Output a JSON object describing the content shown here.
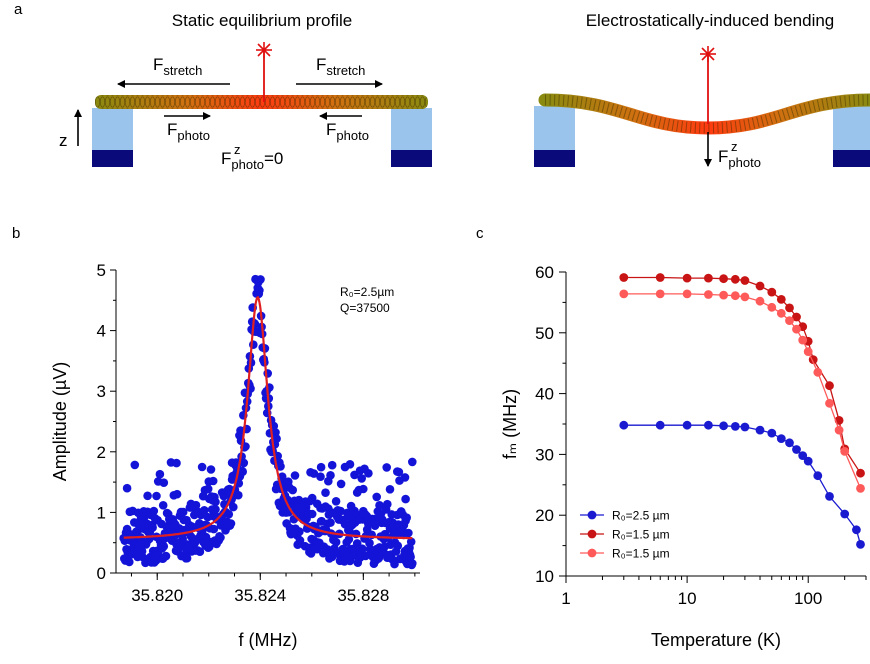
{
  "panels": {
    "a": {
      "letter": "a",
      "left_title": "Static equilibrium profile",
      "right_title": "Electrostatically-induced bending",
      "f_stretch_main": "F",
      "f_stretch_sub": "stretch",
      "f_photo_main": "F",
      "f_photo_sub": "photo",
      "z_label": "z",
      "fz_sup": "z",
      "fz_eq": "=0"
    },
    "b": {
      "letter": "b"
    },
    "c": {
      "letter": "c"
    }
  },
  "chart_data": [
    {
      "type": "scatter",
      "panel": "b",
      "xlabel": "f (MHz)",
      "ylabel": "Amplitude (µV)",
      "xlim": [
        35.8184,
        35.8302
      ],
      "ylim": [
        0,
        5
      ],
      "xticks": [
        35.82,
        35.824,
        35.828
      ],
      "xtick_labels": [
        "35.820",
        "35.824",
        "35.828"
      ],
      "yticks": [
        0,
        1,
        2,
        3,
        4,
        5
      ],
      "ytick_labels": [
        "0",
        "1",
        "2",
        "3",
        "4",
        "5"
      ],
      "annotation": [
        "R₀=2.5µm",
        "Q=37500"
      ],
      "fit": {
        "f0": 35.8239,
        "fwhm": 0.000955,
        "baseline": 0.55,
        "peak": 4.55,
        "color": "#e02020"
      },
      "scatter_color": "#1414d8",
      "noise_level": 0.45,
      "peak_max": 4.9
    },
    {
      "type": "line",
      "panel": "c",
      "xscale": "log",
      "xlabel": "Temperature (K)",
      "ylabel": "fₘ (MHz)",
      "xlim": [
        1,
        300
      ],
      "ylim": [
        10,
        60
      ],
      "xticks": [
        1,
        10,
        100
      ],
      "xtick_labels": [
        "1",
        "10",
        "100"
      ],
      "yticks": [
        10,
        20,
        30,
        40,
        50,
        60
      ],
      "ytick_labels": [
        "10",
        "20",
        "30",
        "40",
        "50",
        "60"
      ],
      "legend_position": "bottom-left",
      "series": [
        {
          "name": "R₀=2.5 µm",
          "color": "#1a1ad0",
          "x": [
            3,
            6,
            10,
            15,
            20,
            25,
            30,
            40,
            50,
            60,
            70,
            80,
            90,
            100,
            120,
            150,
            200,
            250,
            270
          ],
          "y": [
            34.8,
            34.8,
            34.8,
            34.8,
            34.7,
            34.6,
            34.5,
            34.0,
            33.5,
            32.6,
            31.9,
            30.8,
            29.8,
            28.9,
            26.5,
            23.1,
            20.2,
            17.6,
            15.2
          ]
        },
        {
          "name": "R₀=1.5 µm",
          "color": "#c81414",
          "x": [
            3,
            6,
            10,
            15,
            20,
            25,
            30,
            40,
            50,
            60,
            70,
            80,
            90,
            100,
            110,
            150,
            180,
            200,
            270
          ],
          "y": [
            59.1,
            59.1,
            59.0,
            59.0,
            58.9,
            58.8,
            58.6,
            57.7,
            56.7,
            55.5,
            54.1,
            52.6,
            51.0,
            48.6,
            45.6,
            41.3,
            35.6,
            30.9,
            26.9
          ]
        },
        {
          "name": "R₀=1.5 µm",
          "color": "#ff5a5a",
          "x": [
            3,
            6,
            10,
            15,
            20,
            25,
            30,
            40,
            50,
            60,
            70,
            80,
            90,
            100,
            120,
            150,
            180,
            200,
            270
          ],
          "y": [
            56.4,
            56.4,
            56.4,
            56.3,
            56.2,
            56.1,
            55.9,
            55.2,
            54.2,
            53.2,
            52.0,
            50.6,
            48.8,
            46.9,
            43.5,
            38.4,
            34.0,
            30.5,
            24.4
          ]
        }
      ]
    }
  ]
}
